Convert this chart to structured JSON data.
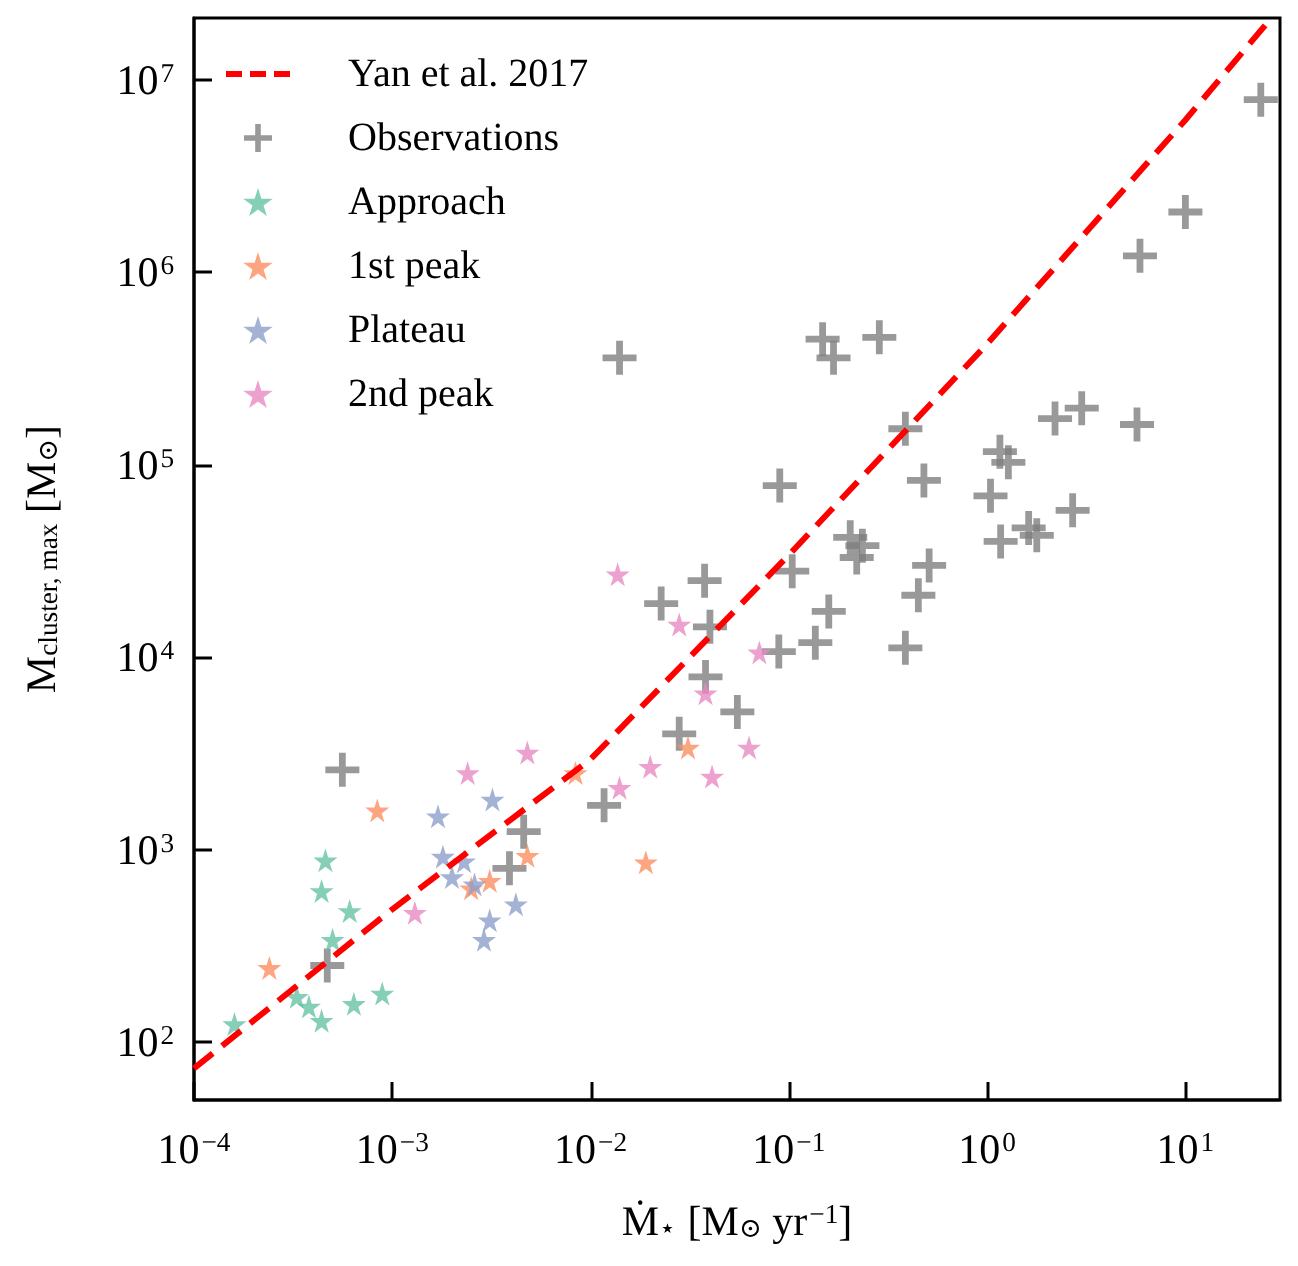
{
  "chart_data": {
    "type": "scatter",
    "xlabel": "Ṁ$_{⋆}$ [M$_{⊙}$ yr$^{−1}$]",
    "ylabel": "M$_{cluster, max}$ [M$_{⊙}$]",
    "log": "xy",
    "xlim": [
      0.0001,
      30
    ],
    "ylim": [
      50,
      21000000
    ],
    "xticks": [
      {
        "value": 0.0001,
        "label": "10$^{−4}$"
      },
      {
        "value": 0.001,
        "label": "10$^{−3}$"
      },
      {
        "value": 0.01,
        "label": "10$^{−2}$"
      },
      {
        "value": 0.1,
        "label": "10$^{−1}$"
      },
      {
        "value": 1,
        "label": "10$^{0}$"
      },
      {
        "value": 10,
        "label": "10$^{1}$"
      }
    ],
    "yticks": [
      {
        "value": 100,
        "label": "10$^{2}$"
      },
      {
        "value": 1000,
        "label": "10$^{3}$"
      },
      {
        "value": 10000,
        "label": "10$^{4}$"
      },
      {
        "value": 100000,
        "label": "10$^{5}$"
      },
      {
        "value": 1000000,
        "label": "10$^{6}$"
      },
      {
        "value": 10000000,
        "label": "10$^{7}$"
      }
    ],
    "grid": false,
    "legend": "top left",
    "series": [
      {
        "name": "Yan et al. 2017",
        "type": "line",
        "color": "#ff0000",
        "line_style": "dashed",
        "marker": "none",
        "x": [
          0.0001,
          0.001,
          0.01,
          0.1,
          1,
          10,
          26.8
        ],
        "values": [
          73,
          490,
          2950,
          34000,
          425000,
          6200000,
          20700000
        ]
      },
      {
        "name": "Observations",
        "color": "#808080",
        "marker": "cross",
        "x": [
          0.00056,
          0.00047,
          0.0046,
          0.0039,
          0.0117,
          0.014,
          0.148,
          0.168,
          0.286,
          0.387,
          0.48,
          0.09,
          0.204,
          0.235,
          0.22,
          0.51,
          0.104,
          0.45,
          0.0376,
          0.0227,
          0.04,
          0.159,
          0.089,
          0.136,
          0.387,
          0.038,
          0.055,
          0.028,
          24,
          10,
          5.9,
          2.2,
          3.0,
          5.7,
          1.16,
          1.28,
          1.04,
          2.7,
          1.62,
          1.78,
          1.17
        ],
        "values": [
          2600,
          250,
          1240,
          800,
          1700,
          360000,
          450000,
          360000,
          460000,
          154000,
          83000,
          78000,
          42000,
          38000,
          33000,
          30000,
          28000,
          21000,
          25000,
          19000,
          14400,
          17300,
          10700,
          11900,
          11200,
          7900,
          5200,
          4000,
          7900000,
          2060000,
          1220000,
          174000,
          197000,
          162000,
          117000,
          103000,
          69000,
          58000,
          47000,
          43000,
          40000
        ]
      },
      {
        "name": "Approach",
        "color": "#66c2a5",
        "marker": "star",
        "x": [
          0.00016,
          0.00033,
          0.00038,
          0.00044,
          0.00046,
          0.00044,
          0.00061,
          0.0005,
          0.00064,
          0.00089
        ],
        "values": [
          124,
          172,
          153,
          129,
          880,
          610,
          480,
          340,
          158,
          179
        ]
      },
      {
        "name": "1st peak",
        "color": "#fc8d62",
        "marker": "star",
        "x": [
          0.00024,
          0.00084,
          0.0025,
          0.0031,
          0.0048,
          0.0084,
          0.031,
          0.019
        ],
        "values": [
          243,
          1600,
          630,
          690,
          930,
          2500,
          3400,
          860
        ]
      },
      {
        "name": "Plateau",
        "color": "#8da0cb",
        "marker": "star",
        "x": [
          0.0017,
          0.0032,
          0.0018,
          0.002,
          0.0023,
          0.0026,
          0.0031,
          0.0029,
          0.0042
        ],
        "values": [
          1490,
          1820,
          920,
          720,
          870,
          660,
          430,
          340,
          520
        ]
      },
      {
        "name": "2nd peak",
        "color": "#e78ac3",
        "marker": "star",
        "x": [
          0.0013,
          0.0024,
          0.0048,
          0.014,
          0.0137,
          0.028,
          0.071,
          0.038,
          0.063,
          0.02,
          0.041
        ],
        "values": [
          470,
          2500,
          3200,
          2100,
          27000,
          14800,
          10600,
          6500,
          3400,
          2700,
          2400
        ]
      }
    ]
  }
}
